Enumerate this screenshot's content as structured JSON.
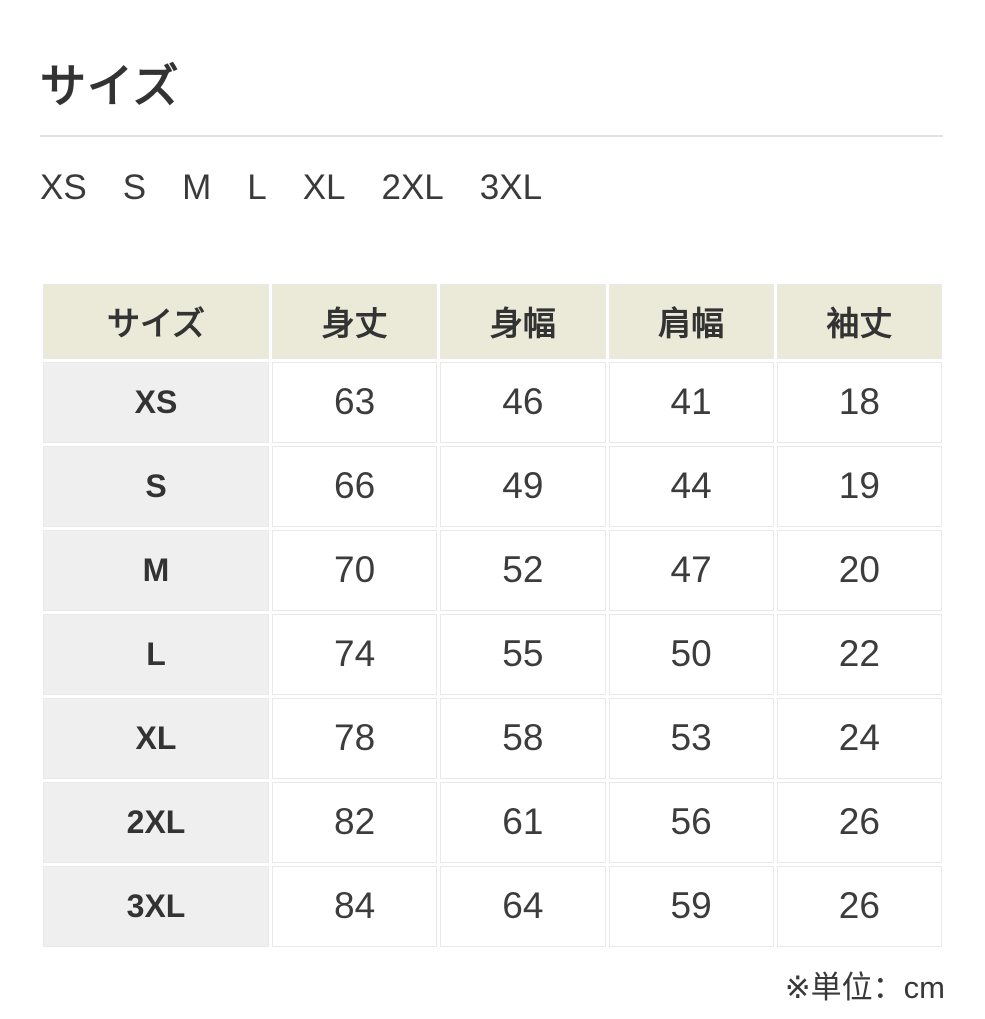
{
  "title": "サイズ",
  "size_options": [
    "XS",
    "S",
    "M",
    "L",
    "XL",
    "2XL",
    "3XL"
  ],
  "table": {
    "headers": [
      "サイズ",
      "身丈",
      "身幅",
      "肩幅",
      "袖丈"
    ],
    "rows": [
      {
        "size": "XS",
        "values": [
          "63",
          "46",
          "41",
          "18"
        ]
      },
      {
        "size": "S",
        "values": [
          "66",
          "49",
          "44",
          "19"
        ]
      },
      {
        "size": "M",
        "values": [
          "70",
          "52",
          "47",
          "20"
        ]
      },
      {
        "size": "L",
        "values": [
          "74",
          "55",
          "50",
          "22"
        ]
      },
      {
        "size": "XL",
        "values": [
          "78",
          "58",
          "53",
          "24"
        ]
      },
      {
        "size": "2XL",
        "values": [
          "82",
          "61",
          "56",
          "26"
        ]
      },
      {
        "size": "3XL",
        "values": [
          "84",
          "64",
          "59",
          "26"
        ]
      }
    ]
  },
  "unit_note": "※単位：cm",
  "colors": {
    "header_bg": "#ebead9",
    "row_label_bg": "#efefef",
    "cell_bg": "#ffffff",
    "text": "#333333",
    "border": "#e9e9e9",
    "divider": "#e2e2e2"
  }
}
